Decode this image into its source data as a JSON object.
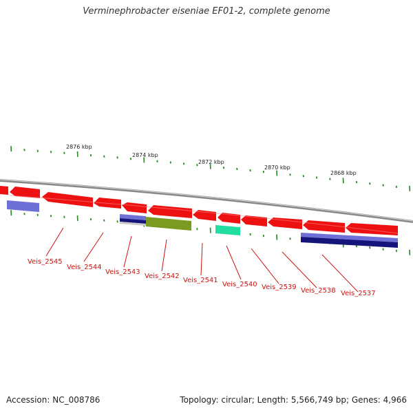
{
  "title": "Verminephrobacter eiseniae EF01-2, complete genome",
  "footer": {
    "accession": "Accession: NC_008786",
    "summary": "Topology: circular; Length: 5,566,749 bp; Genes: 4,966"
  },
  "coordinate_labels": [
    "2876 kbp",
    "2874 kbp",
    "2872 kbp",
    "2870 kbp",
    "2868 kbp"
  ],
  "gene_labels": [
    "Veis_2545",
    "Veis_2544",
    "Veis_2543",
    "Veis_2542",
    "Veis_2541",
    "Veis_2540",
    "Veis_2539",
    "Veis_2538",
    "Veis_2537"
  ],
  "colors": {
    "gene": "#ee1111",
    "backbone": "#888888",
    "tick": "#228822",
    "label": "#cc1111",
    "blue_feature": "#6f6fd8",
    "navy_feature": "#14147a",
    "olive_feature": "#7a9a22",
    "teal_feature": "#22dda0"
  }
}
